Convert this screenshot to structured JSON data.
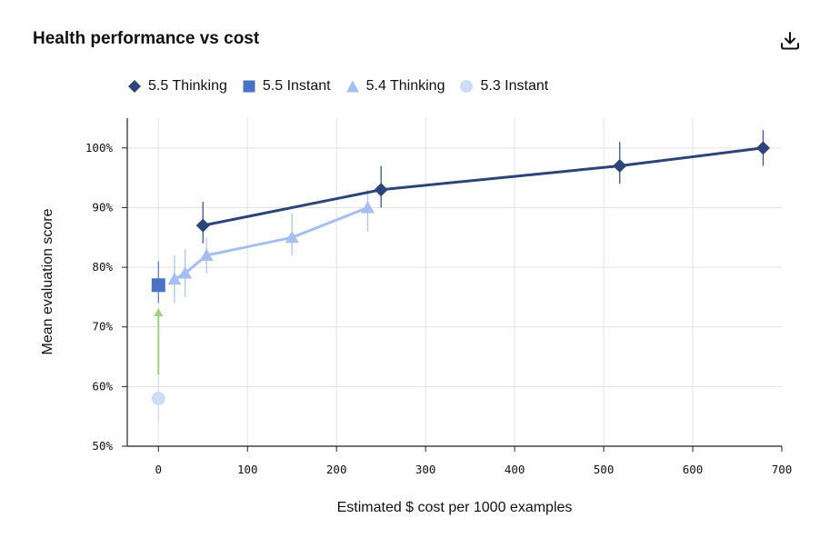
{
  "header": {
    "title": "Health performance vs cost",
    "download_icon": "download-icon"
  },
  "colors": {
    "s55_thinking": "#2d4476",
    "s55_instant": "#4a72c4",
    "s54_thinking": "#a6bff0",
    "s53_instant": "#cddcf5",
    "arrow": "#9fd27c",
    "grid": "#e3e3e3",
    "axis": "#222222"
  },
  "chart_data": {
    "type": "scatter",
    "title": "Health performance vs cost",
    "xlabel": "Estimated $ cost per 1000 examples",
    "ylabel": "Mean evaluation score",
    "xlim": [
      -35,
      700
    ],
    "ylim": [
      50,
      105
    ],
    "x_ticks": [
      0,
      100,
      200,
      300,
      400,
      500,
      600,
      700
    ],
    "x_tick_labels": [
      "0",
      "100",
      "200",
      "300",
      "400",
      "500",
      "600",
      "700"
    ],
    "y_ticks": [
      50,
      60,
      70,
      80,
      90,
      100
    ],
    "y_tick_labels": [
      "50%",
      "60%",
      "70%",
      "80%",
      "90%",
      "100%"
    ],
    "grid": true,
    "legend_position": "top-left",
    "series": [
      {
        "name": "5.5 Thinking",
        "marker": "diamond",
        "connected": true,
        "points": [
          {
            "x": 50,
            "y": 87,
            "err_low": 84,
            "err_high": 91
          },
          {
            "x": 250,
            "y": 93,
            "err_low": 90,
            "err_high": 97
          },
          {
            "x": 518,
            "y": 97,
            "err_low": 94,
            "err_high": 101
          },
          {
            "x": 679,
            "y": 100,
            "err_low": 97,
            "err_high": 103
          }
        ]
      },
      {
        "name": "5.5 Instant",
        "marker": "square",
        "connected": false,
        "points": [
          {
            "x": 0,
            "y": 77,
            "err_low": 74,
            "err_high": 81
          }
        ]
      },
      {
        "name": "5.4 Thinking",
        "marker": "triangle",
        "connected": true,
        "points": [
          {
            "x": 18,
            "y": 78,
            "err_low": 74,
            "err_high": 82
          },
          {
            "x": 30,
            "y": 79,
            "err_low": 75,
            "err_high": 83
          },
          {
            "x": 54,
            "y": 82,
            "err_low": 79,
            "err_high": 85
          },
          {
            "x": 150,
            "y": 85,
            "err_low": 82,
            "err_high": 89
          },
          {
            "x": 235,
            "y": 90,
            "err_low": 86,
            "err_high": 93
          }
        ]
      },
      {
        "name": "5.3 Instant",
        "marker": "circle",
        "connected": false,
        "points": [
          {
            "x": 0,
            "y": 58,
            "err_low": 54,
            "err_high": 62
          }
        ]
      }
    ],
    "annotations": [
      {
        "type": "arrow",
        "x": 0,
        "y_from": 62,
        "y_to": 73
      }
    ]
  }
}
